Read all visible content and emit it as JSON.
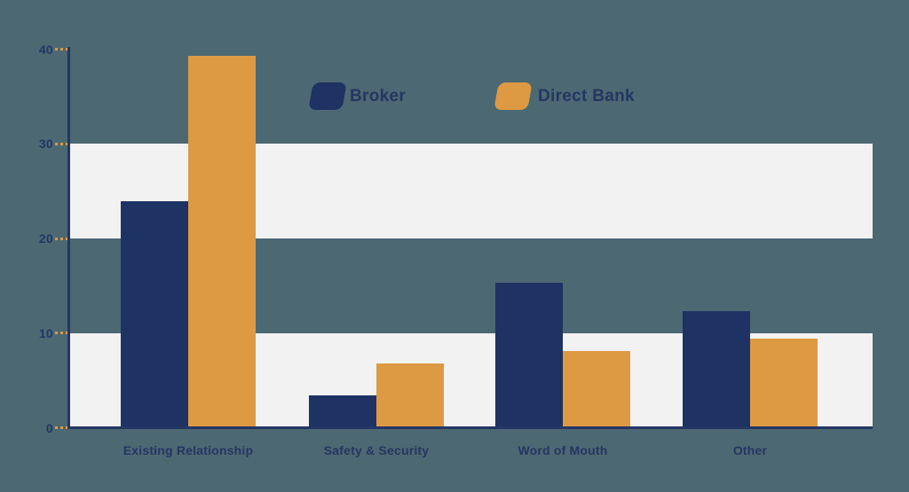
{
  "page": {
    "background_color": "#4c6872",
    "band_color": "#f2f2f3",
    "axis_color": "#243663",
    "text_color": "#243663",
    "tick_dash_color": "#dd9a43"
  },
  "chart_data": {
    "type": "bar",
    "title": "",
    "categories": [
      "Existing Relationship",
      "Safety & Security",
      "Word of Mouth",
      "Other"
    ],
    "series": [
      {
        "name": "Broker",
        "color": "#1e3264",
        "values": [
          23.9,
          3.4,
          15.3,
          12.3
        ]
      },
      {
        "name": "Direct Bank",
        "color": "#dd9a43",
        "values": [
          39.3,
          6.8,
          8.1,
          9.4
        ]
      }
    ],
    "xlabel": "",
    "ylabel": "",
    "ylim": [
      0,
      40
    ],
    "ytick_values": [
      0,
      10,
      20,
      30,
      40
    ],
    "ytick_labels": [
      "0",
      "10",
      "20",
      "30",
      "40"
    ],
    "grid": "alternating horizontal white bands",
    "band_value_ranges": [
      [
        20,
        30
      ],
      [
        0,
        10
      ]
    ],
    "legend_position": "top-center"
  },
  "legend": {
    "items": [
      {
        "label": "Broker",
        "swatch_color": "#1e3264"
      },
      {
        "label": "Direct Bank",
        "swatch_color": "#dd9a43"
      }
    ]
  }
}
